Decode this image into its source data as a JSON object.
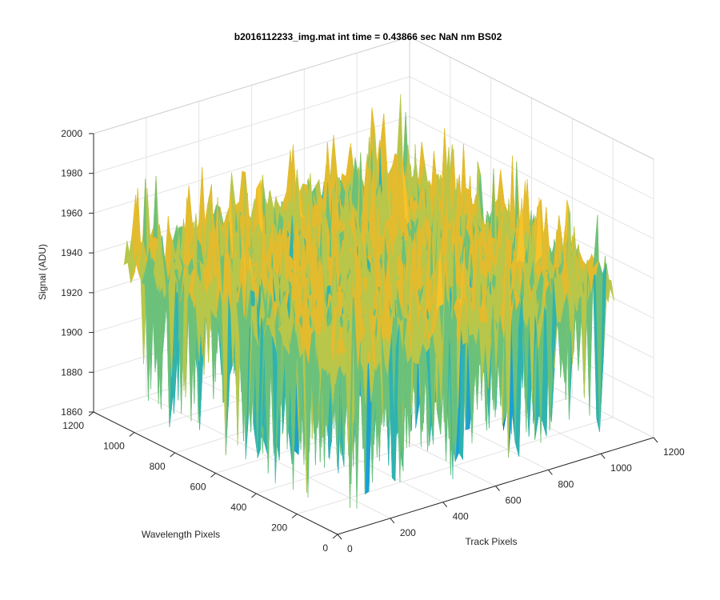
{
  "chart_data": {
    "type": "surface",
    "title": "b2016112233_img.mat int time = 0.43866 sec  NaN nm BS02",
    "xlabel": "Track Pixels",
    "ylabel": "Wavelength Pixels",
    "zlabel": "Signal (ADU)",
    "xlim": [
      0,
      1200
    ],
    "ylim": [
      0,
      1200
    ],
    "zlim": [
      1860,
      2000
    ],
    "x_ticks": [
      "0",
      "200",
      "400",
      "600",
      "800",
      "1000",
      "1200"
    ],
    "y_ticks": [
      "0",
      "200",
      "400",
      "600",
      "800",
      "1000",
      "1200"
    ],
    "z_ticks": [
      "1860",
      "1880",
      "1900",
      "1920",
      "1940",
      "1960",
      "1980",
      "2000"
    ],
    "grid": true,
    "surface": {
      "x_extent": [
        0,
        1050
      ],
      "y_extent": [
        0,
        1050
      ],
      "typical_signal": 1945,
      "min_signal": 1870,
      "max_signal": 1985
    },
    "colormap": [
      "#0072bd",
      "#1aa0d4",
      "#2fb3b0",
      "#6cc17a",
      "#b8c64a",
      "#e3bb2e",
      "#f5c32a"
    ]
  }
}
